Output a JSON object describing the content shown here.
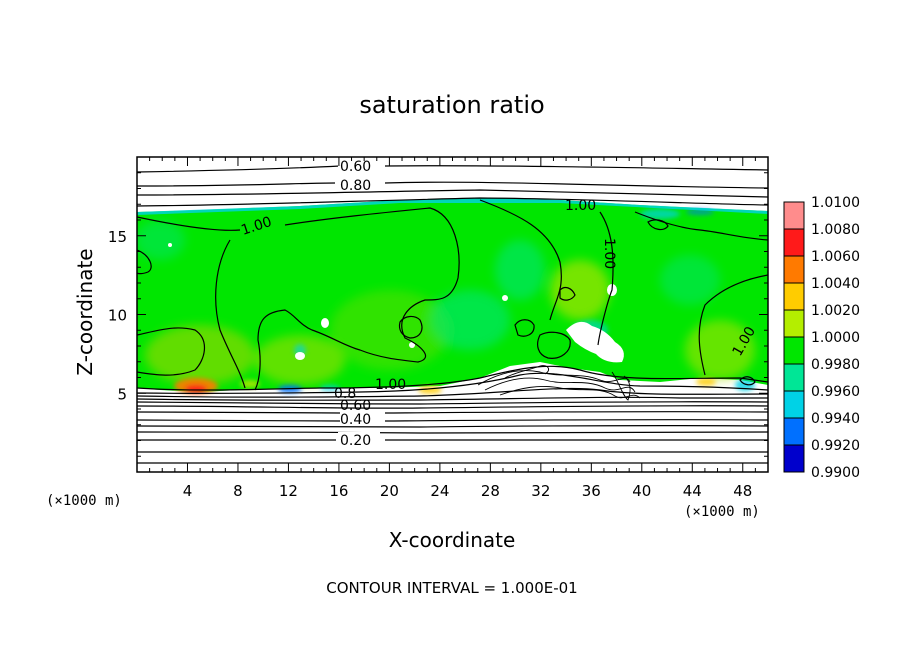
{
  "chart_data": {
    "type": "heatmap",
    "title": "saturation ratio",
    "xlabel": "X-coordinate",
    "ylabel": "Z-coordinate",
    "x_unit": "(×1000 m)",
    "y_unit": "(×1000 m)",
    "xlim": [
      0,
      50
    ],
    "ylim": [
      0,
      20
    ],
    "x_ticks": [
      4,
      8,
      12,
      16,
      20,
      24,
      28,
      32,
      36,
      40,
      44,
      48
    ],
    "y_ticks": [
      5,
      10,
      15
    ],
    "x_tick_labels": [
      "4",
      "8",
      "12",
      "16",
      "20",
      "24",
      "28",
      "32",
      "36",
      "40",
      "44",
      "48"
    ],
    "y_tick_labels": [
      "5",
      "10",
      "15"
    ],
    "colorbar": {
      "min": 0.99,
      "max": 1.01,
      "labels": [
        "1.0100",
        "1.0080",
        "1.0060",
        "1.0040",
        "1.0020",
        "1.0000",
        "0.9980",
        "0.9960",
        "0.9940",
        "0.9920",
        "0.9900"
      ],
      "colors": [
        "#ff8c8c",
        "#ff1a1a",
        "#ff7a00",
        "#ffcc00",
        "#b4ee00",
        "#00e600",
        "#00e696",
        "#00d2e6",
        "#0070ff",
        "#0000cc",
        "#6000a8"
      ]
    },
    "contour_labels": [
      {
        "text": "0.60",
        "x": 17.8,
        "z": 19.5
      },
      {
        "text": "0.80",
        "x": 17.8,
        "z": 18.4
      },
      {
        "text": "1.00",
        "x": 35.0,
        "z": 17.2
      },
      {
        "text": "1.00",
        "x": 9.0,
        "z": 15.5
      },
      {
        "text": "1.00",
        "x": 37.5,
        "z": 14.0
      },
      {
        "text": "1.00",
        "x": 48.0,
        "z": 8.2
      },
      {
        "text": "0.8",
        "x": 16.8,
        "z": 5.2
      },
      {
        "text": "1.00",
        "x": 20.5,
        "z": 5.8
      },
      {
        "text": "0.60",
        "x": 17.0,
        "z": 4.4
      },
      {
        "text": "0.40",
        "x": 17.0,
        "z": 3.3
      },
      {
        "text": "0.20",
        "x": 17.0,
        "z": 2.0
      }
    ],
    "annotation": "CONTOUR INTERVAL = 1.000E-01"
  }
}
